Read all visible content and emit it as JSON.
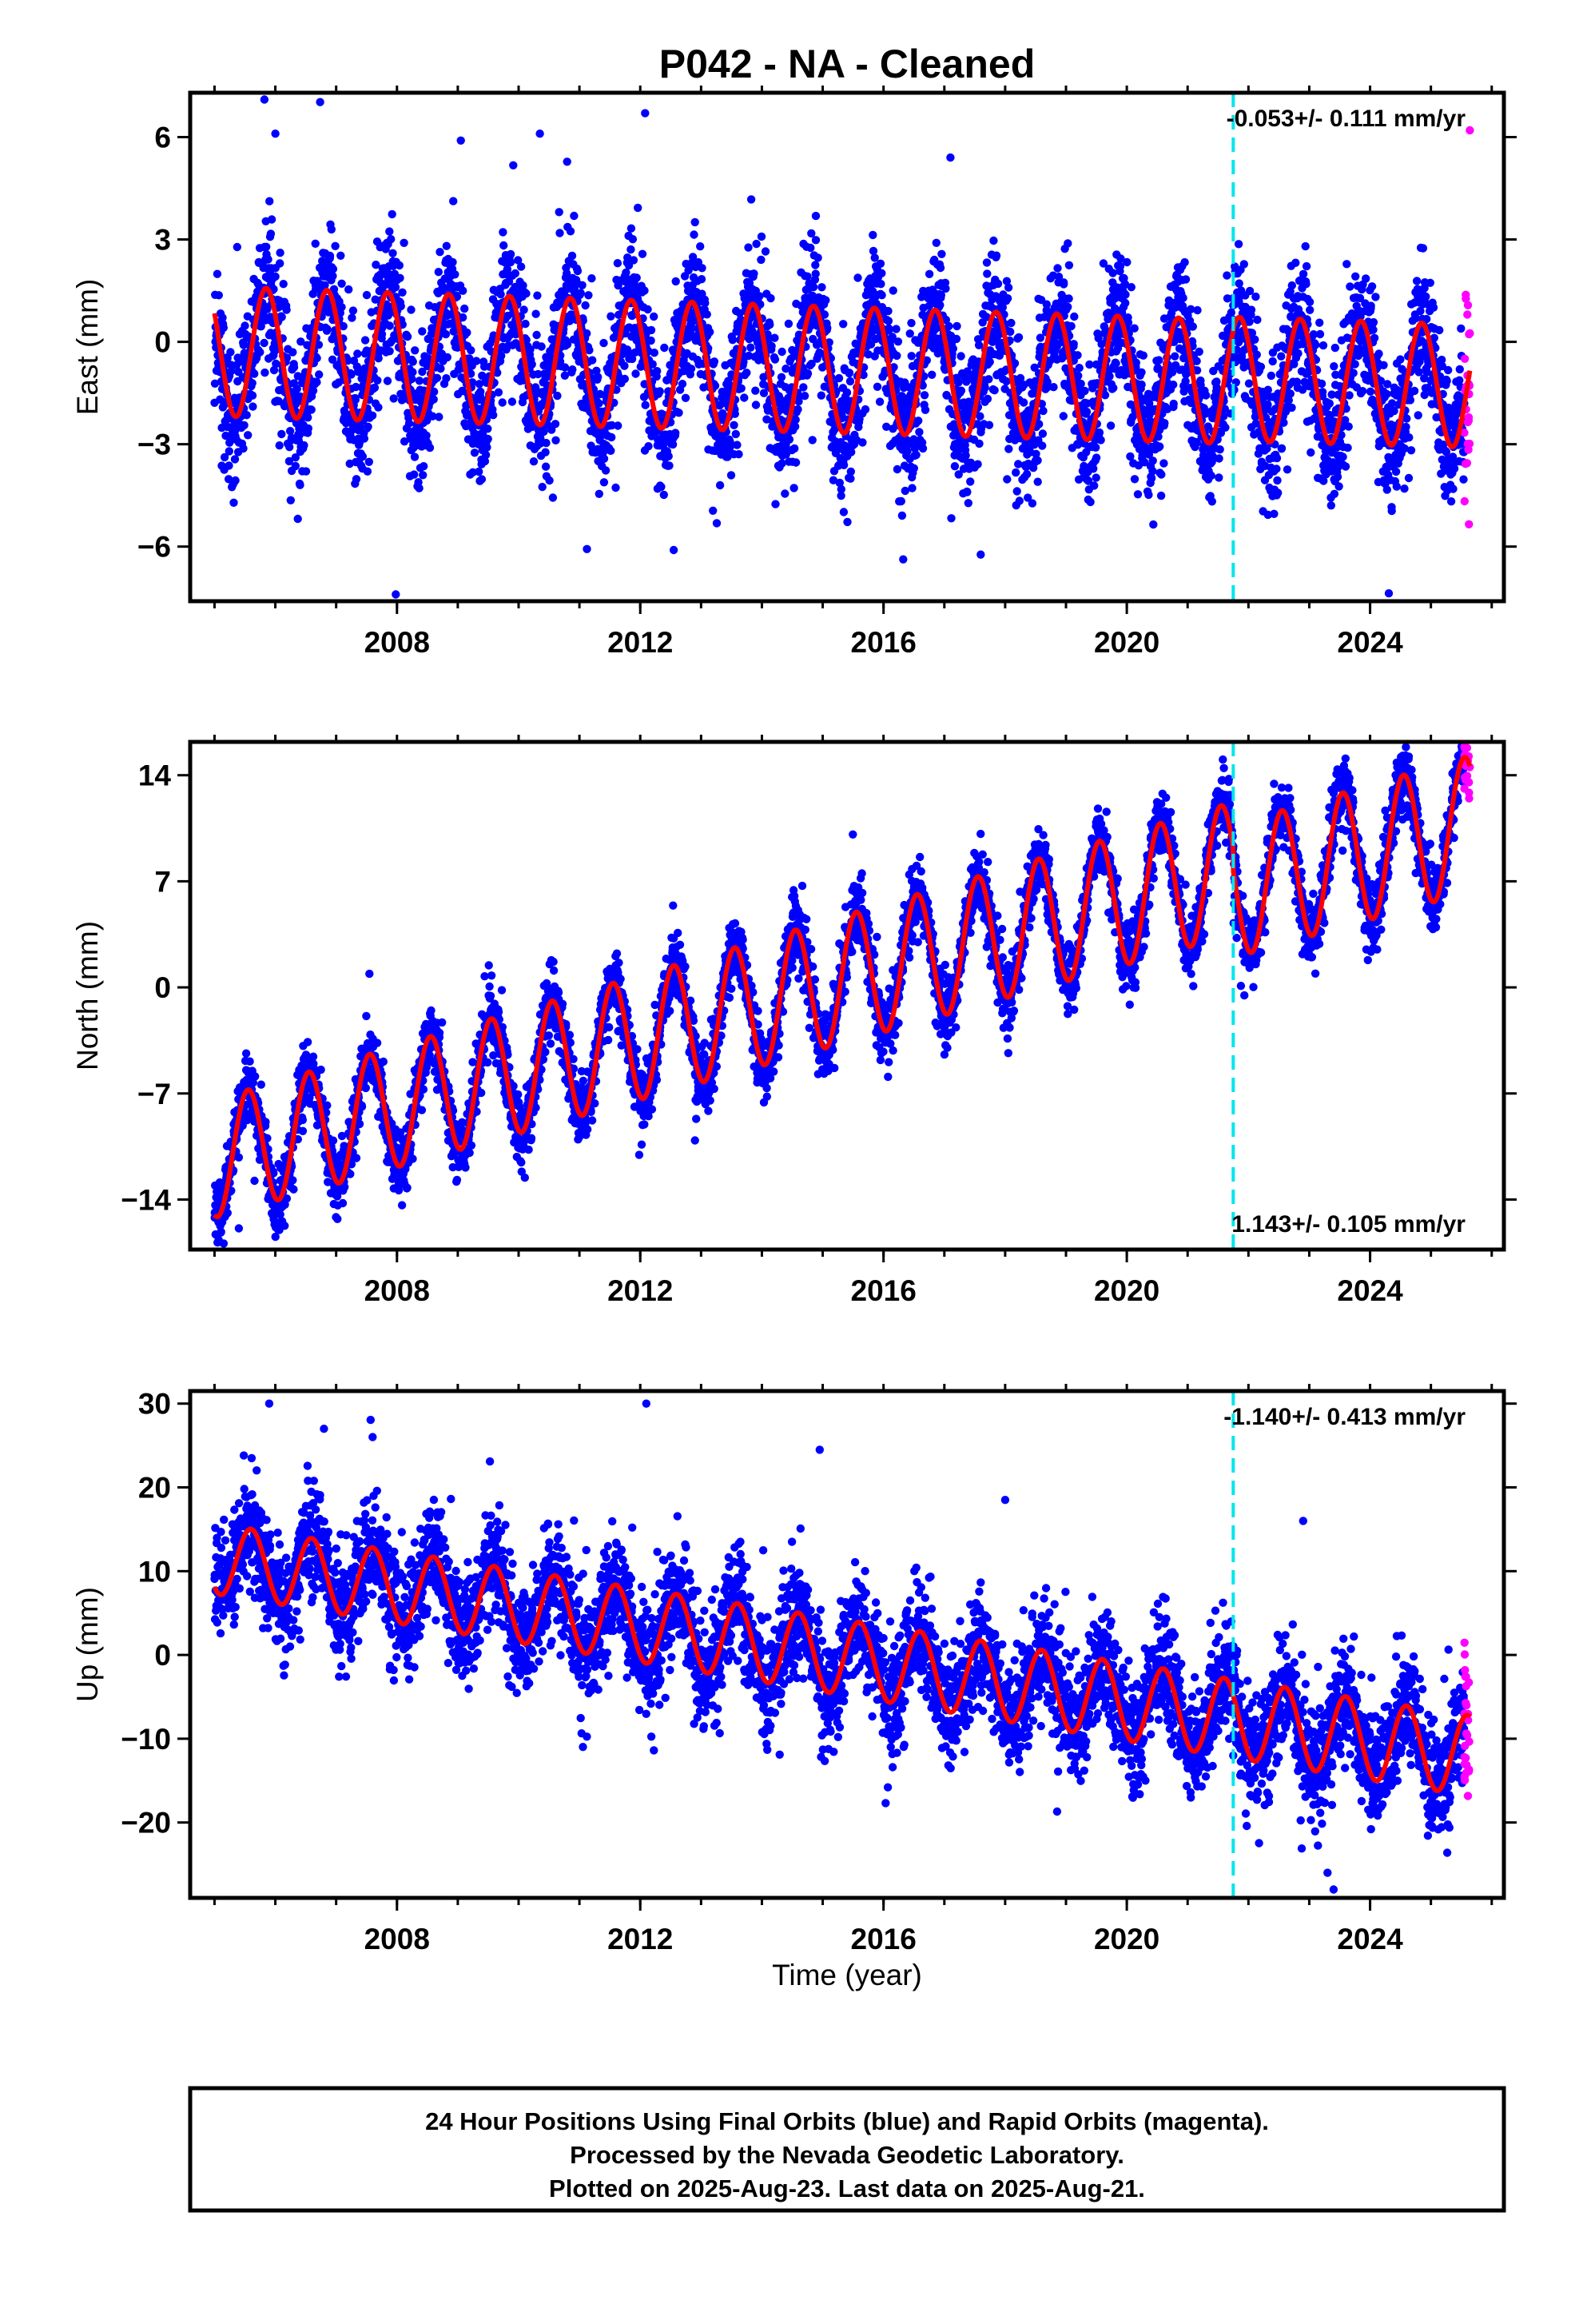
{
  "title": "P042  - NA - Cleaned",
  "colors": {
    "final_orbits": "#0000ff",
    "rapid_orbits": "#ff00ff",
    "model": "#ff0000",
    "step_marker": "#00e5ee",
    "frame": "#000000"
  },
  "chart_data": [
    {
      "type": "scatter",
      "component": "east",
      "ylabel": "East (mm)",
      "rate_label": "-0.053+/- 0.111 mm/yr",
      "rate_position": "top-right",
      "xlim": [
        2004.6,
        2026.2
      ],
      "ylim": [
        -7.6,
        7.3
      ],
      "xticks": [
        2008,
        2012,
        2016,
        2020,
        2024
      ],
      "yticks": [
        -6,
        -3,
        0,
        3,
        6
      ],
      "ytick_labels": [
        "−6",
        "−3",
        "0",
        "3",
        "6"
      ],
      "data_start": 2005.0,
      "data_end": 2025.64,
      "rapid_start": 2025.55,
      "step_epoch": 2021.75,
      "model": {
        "offset_before": -0.28,
        "offset_after": -0.2,
        "trend_mm_per_yr": -0.053,
        "amplitude_start": 1.9,
        "amplitude_end": 1.8,
        "peak_phase": 0.85,
        "step_mm": 0.0
      },
      "scatter_sd": 0.95,
      "outliers": [
        [
          2005.82,
          7.1
        ],
        [
          2006.0,
          6.1
        ],
        [
          2009.05,
          5.9
        ],
        [
          2010.35,
          6.1
        ],
        [
          2012.08,
          6.7
        ],
        [
          2007.98,
          -7.4
        ],
        [
          2012.55,
          -6.1
        ],
        [
          2017.1,
          5.4
        ],
        [
          2025.64,
          6.2
        ]
      ]
    },
    {
      "type": "scatter",
      "component": "north",
      "ylabel": "North (mm)",
      "rate_label": "1.143+/- 0.105 mm/yr",
      "rate_position": "bottom-right",
      "xlim": [
        2004.6,
        2026.2
      ],
      "ylim": [
        -17.3,
        16.2
      ],
      "xticks": [
        2008,
        2012,
        2016,
        2020,
        2024
      ],
      "yticks": [
        -14,
        -7,
        0,
        7,
        14
      ],
      "ytick_labels": [
        "−14",
        "−7",
        "0",
        "7",
        "14"
      ],
      "data_start": 2005.0,
      "data_end": 2025.64,
      "rapid_start": 2025.55,
      "step_epoch": 2021.75,
      "model": {
        "offset_before": -11.3,
        "offset_after": -12.8,
        "trend_mm_per_yr": 1.143,
        "amplitude_start": 3.9,
        "amplitude_end": 4.5,
        "peak_phase": 0.55,
        "step_mm": 0.0
      },
      "scatter_sd": 1.05,
      "outliers": [
        [
          2005.15,
          -16.9
        ],
        [
          2005.4,
          -15.9
        ],
        [
          2012.9,
          -10.1
        ],
        [
          2024.55,
          15.0
        ],
        [
          2025.55,
          15.1
        ]
      ]
    },
    {
      "type": "scatter",
      "component": "up",
      "ylabel": "Up (mm)",
      "xlabel": "Time (year)",
      "rate_label": "-1.140+/- 0.413 mm/yr",
      "rate_position": "top-right",
      "xlim": [
        2004.6,
        2026.2
      ],
      "ylim": [
        -29,
        31.5
      ],
      "xticks": [
        2008,
        2012,
        2016,
        2020,
        2024
      ],
      "yticks": [
        -20,
        -10,
        0,
        10,
        20,
        30
      ],
      "ytick_labels": [
        "−20",
        "−10",
        "0",
        "10",
        "20",
        "30"
      ],
      "data_start": 2005.0,
      "data_end": 2025.64,
      "rapid_start": 2025.55,
      "step_epoch": 2021.75,
      "model": {
        "offset_before": 11.5,
        "offset_after": 11.5,
        "trend_mm_per_yr": -1.14,
        "amplitude_start": 4.2,
        "amplitude_end": 4.8,
        "peak_phase": 0.6,
        "step_mm": 0.0
      },
      "scatter_sd": 3.2,
      "outliers": [
        [
          2005.9,
          30.0
        ],
        [
          2012.1,
          30.0
        ],
        [
          2006.8,
          27.0
        ],
        [
          2007.6,
          26.0
        ],
        [
          2014.95,
          24.5
        ],
        [
          2018.0,
          18.5
        ],
        [
          2022.9,
          16.0
        ],
        [
          2023.4,
          -28.0
        ],
        [
          2023.3,
          -26.0
        ]
      ]
    }
  ],
  "footer": {
    "line1": "24 Hour Positions Using Final Orbits (blue) and Rapid Orbits (magenta).",
    "line2": "Processed by the Nevada Geodetic Laboratory.",
    "line3": "Plotted on 2025-Aug-23. Last data on 2025-Aug-21."
  }
}
